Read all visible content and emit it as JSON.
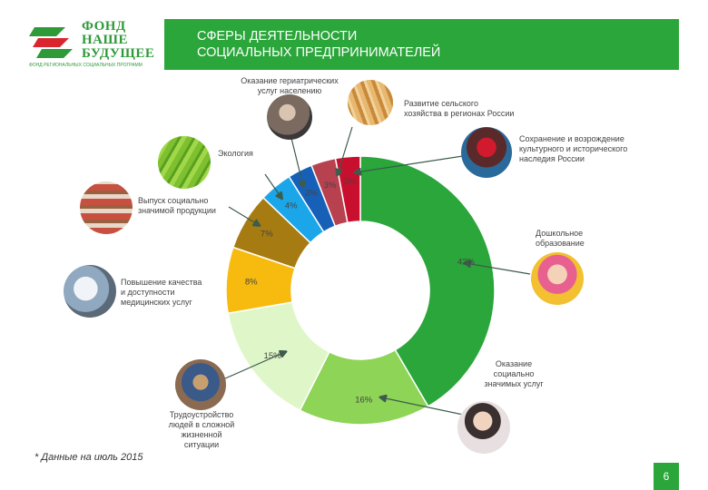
{
  "logo": {
    "text_lines": [
      "ФОНД",
      "НАШЕ",
      "БУДУЩЕЕ"
    ],
    "subtitle": "ФОНД РЕГИОНАЛЬНЫХ СОЦИАЛЬНЫХ ПРОГРАММ"
  },
  "header": {
    "title": "СФЕРЫ ДЕЯТЕЛЬНОСТИ\nСОЦИАЛЬНЫХ ПРЕДПРИНИМАТЕЛЕЙ"
  },
  "chart_data": {
    "type": "pie",
    "donut": true,
    "slices": [
      {
        "label": "Дошкольное образование",
        "value": 42,
        "value_label": "42%",
        "color": "#2aa63a"
      },
      {
        "label": "Оказание социально значимых услуг",
        "value": 16,
        "value_label": "16%",
        "color": "#8ed457"
      },
      {
        "label": "Трудоустройство людей в сложной жизненной ситуации",
        "value": 15,
        "value_label": "15%",
        "color": "#dff7c8"
      },
      {
        "label": "Повышение качества и доступности медицинских услуг",
        "value": 8,
        "value_label": "8%",
        "color": "#f7bb10"
      },
      {
        "label": "Выпуск социально значимой продукции",
        "value": 7,
        "value_label": "7%",
        "color": "#a57b12"
      },
      {
        "label": "Экология",
        "value": 4,
        "value_label": "4%",
        "color": "#1aa6e8"
      },
      {
        "label": "Оказание гериатрических услуг населению",
        "value": 3,
        "value_label": "3%",
        "color": "#1660b8"
      },
      {
        "label": "Развитие сельского хозяйства в регионах России",
        "value": 3,
        "value_label": "3%",
        "color": "#b84150"
      },
      {
        "label": "Сохранение и возрождение культурного и исторического наследия России",
        "value": 3,
        "value_label": "3%",
        "color": "#c8102e"
      }
    ]
  },
  "category_labels": {
    "geriatric": "Оказание гериатрических\nуслуг населению",
    "agriculture": "Развитие сельского\nхозяйства в регионах России",
    "heritage": "Сохранение и возрождение\nкультурного и исторического\nнаследия России",
    "ecology": "Экология",
    "products": "Выпуск социально\nзначимой продукции",
    "preschool": "Дошкольное\nобразование",
    "medical": "Повышение качества\nи доступности\nмедицинских услуг",
    "social": "Оказание\nсоциально\nзначимых услуг",
    "employment": "Трудоустройство\nлюдей в сложной\nжизненной\nситуации"
  },
  "footnote": "* Данные на июль 2015",
  "page_number": "6"
}
